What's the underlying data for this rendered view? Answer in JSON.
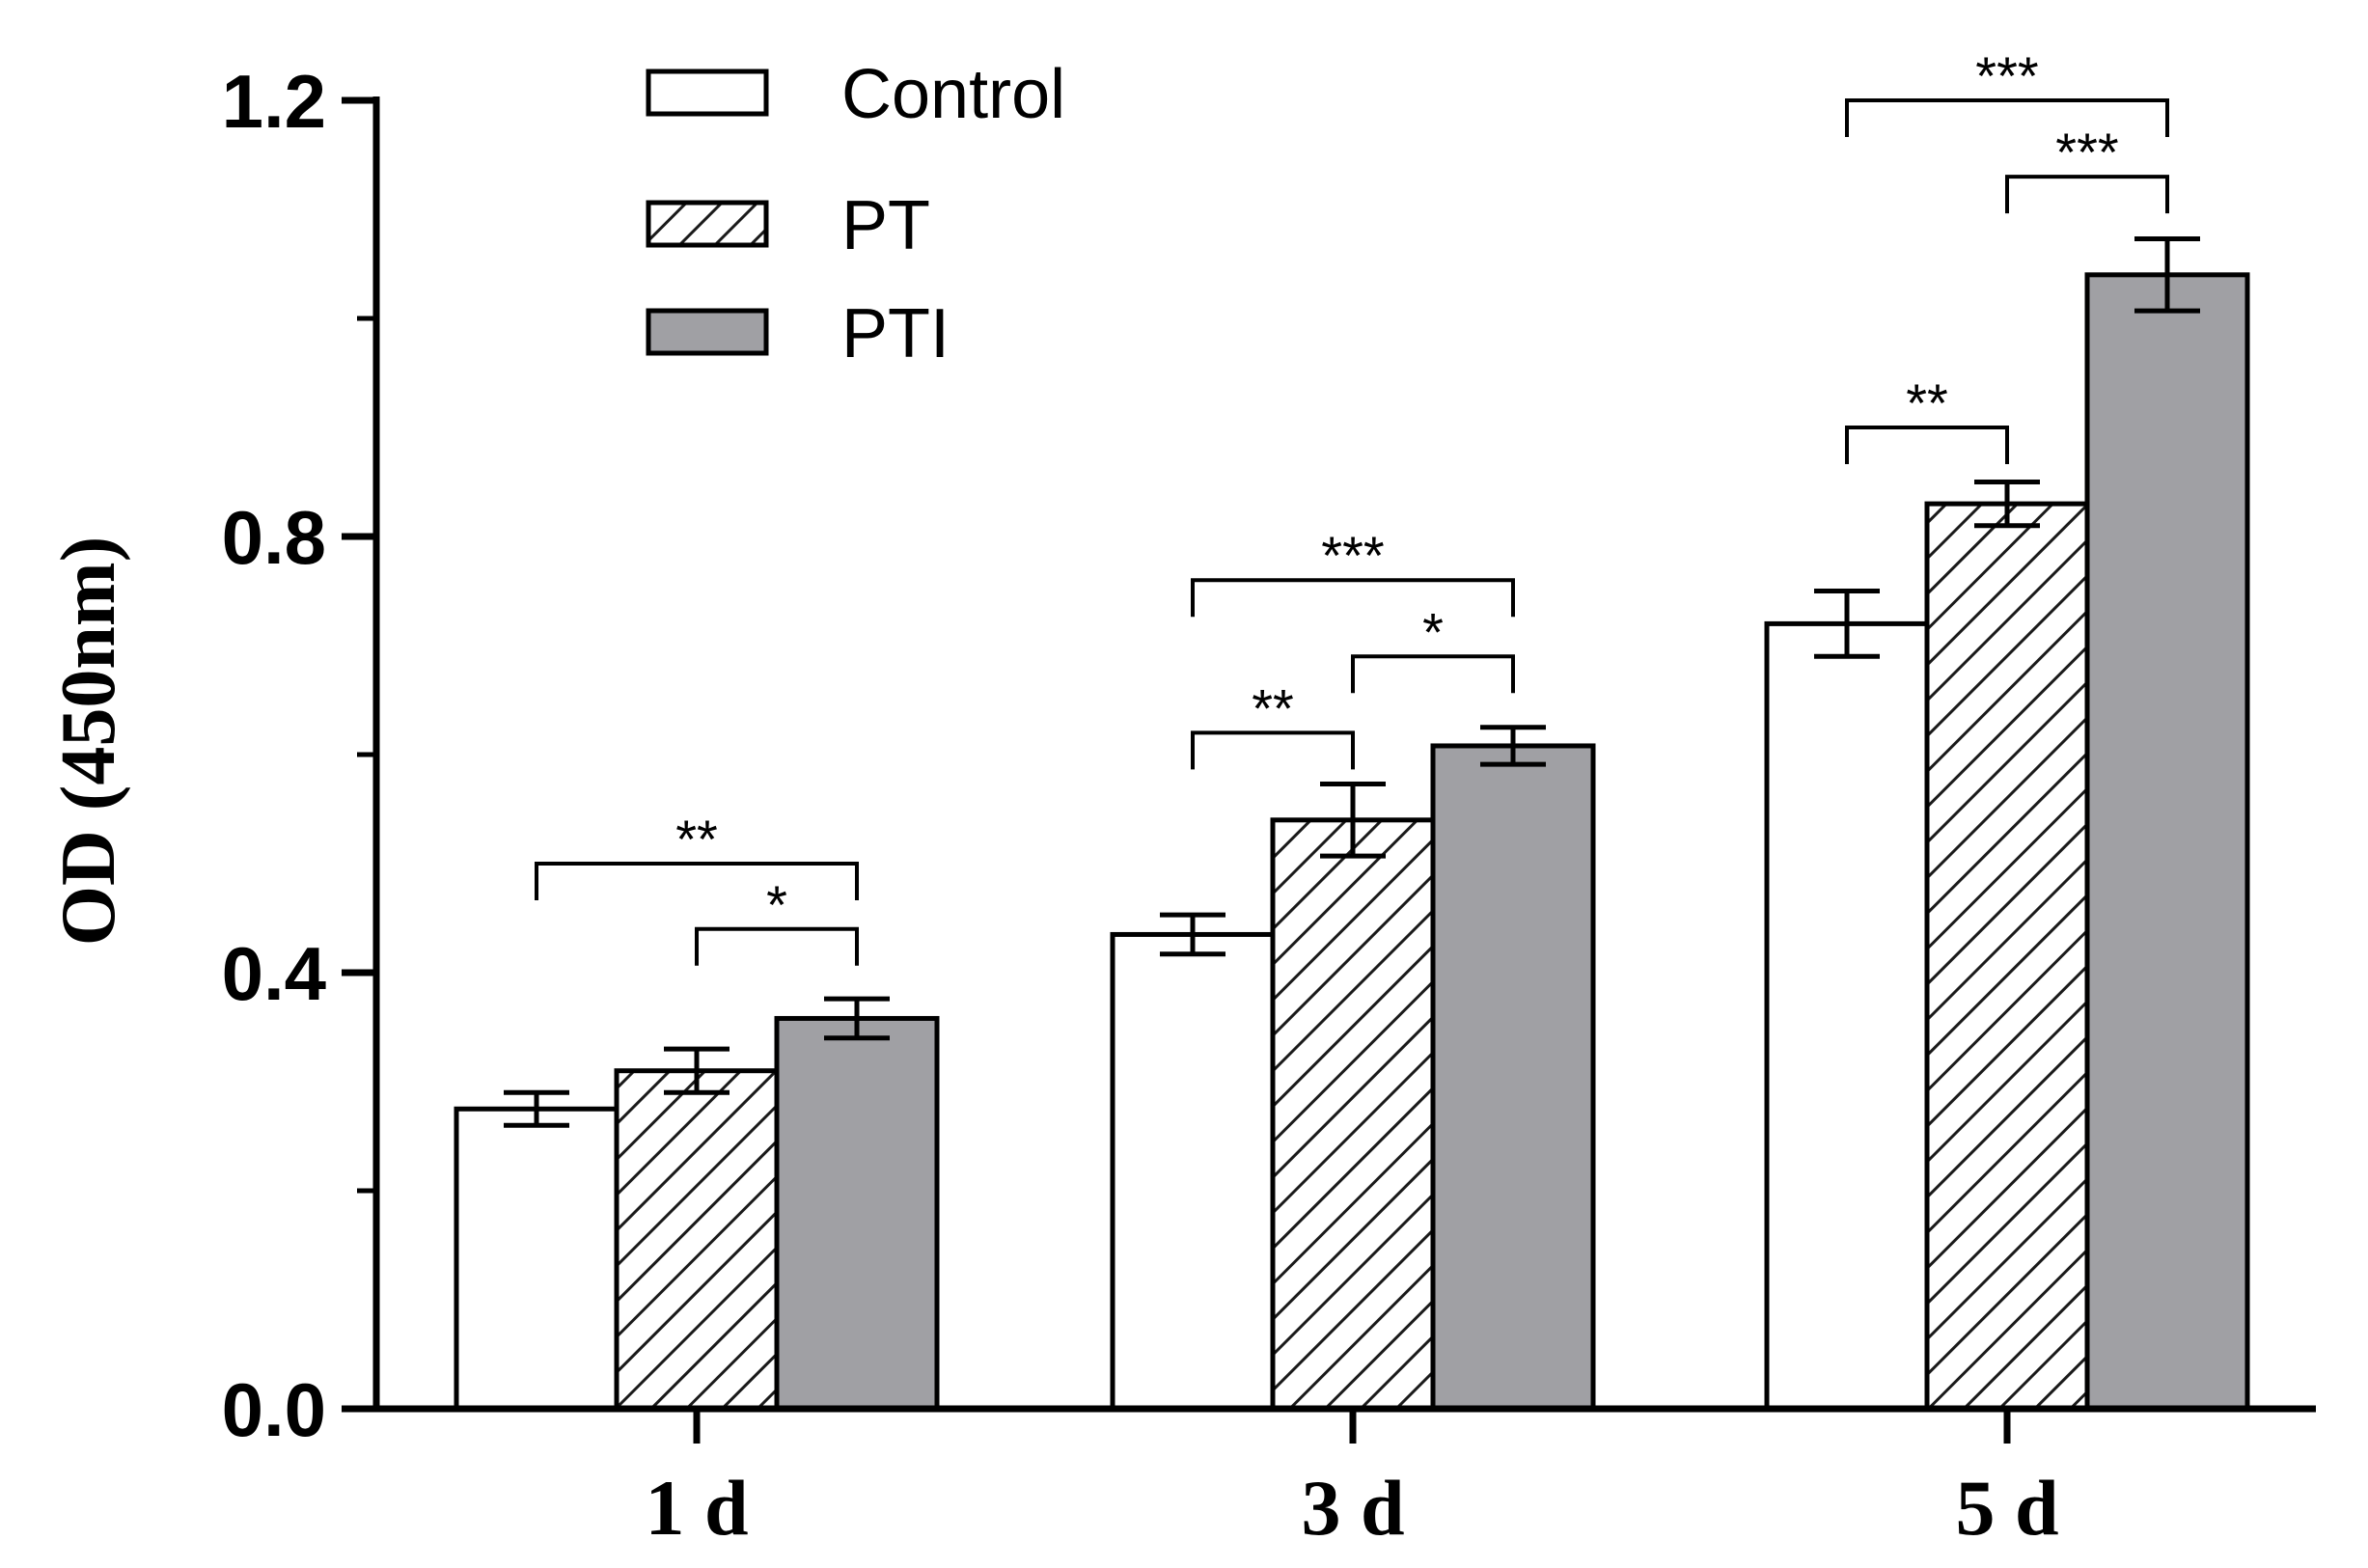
{
  "chart_data": {
    "type": "bar",
    "title": "",
    "xlabel": "",
    "ylabel": "OD (450nm)",
    "ylim": [
      0,
      1.2
    ],
    "yticks": [
      "0.0",
      "0.4",
      "0.8",
      "1.2"
    ],
    "ytick_values": [
      0,
      0.4,
      0.8,
      1.2
    ],
    "categories": [
      "1 d",
      "3 d",
      "5 d"
    ],
    "series": [
      {
        "name": "Control",
        "pattern": "white",
        "values": [
          0.275,
          0.435,
          0.72
        ],
        "errors": [
          0.015,
          0.018,
          0.03
        ]
      },
      {
        "name": "PT",
        "pattern": "hatched",
        "values": [
          0.31,
          0.54,
          0.83
        ],
        "errors": [
          0.02,
          0.033,
          0.02
        ]
      },
      {
        "name": "PTI",
        "pattern": "gray",
        "values": [
          0.358,
          0.608,
          1.04
        ],
        "errors": [
          0.018,
          0.017,
          0.033
        ]
      }
    ],
    "significance": [
      {
        "category": 0,
        "from": 0,
        "to": 2,
        "label": "**",
        "level": 0.5
      },
      {
        "category": 0,
        "from": 1,
        "to": 2,
        "label": "*",
        "level": 0.44
      },
      {
        "category": 1,
        "from": 1,
        "to": 0,
        "label": "**",
        "level": 0.62
      },
      {
        "category": 1,
        "from": 0,
        "to": 2,
        "label": "***",
        "level": 0.76
      },
      {
        "category": 1,
        "from": 1,
        "to": 2,
        "label": "*",
        "level": 0.69
      },
      {
        "category": 2,
        "from": 0,
        "to": 1,
        "label": "**",
        "level": 0.9
      },
      {
        "category": 2,
        "from": 0,
        "to": 2,
        "label": "***",
        "level": 1.2
      },
      {
        "category": 2,
        "from": 1,
        "to": 2,
        "label": "***",
        "level": 1.13
      }
    ],
    "legend": {
      "placement": "top-left"
    }
  },
  "colors": {
    "control_fill": "#ffffff",
    "pt_fill": "#ffffff",
    "pt_hatch": "#1a1a1a",
    "pti_fill": "#a0a0a4",
    "axis": "#000000"
  }
}
